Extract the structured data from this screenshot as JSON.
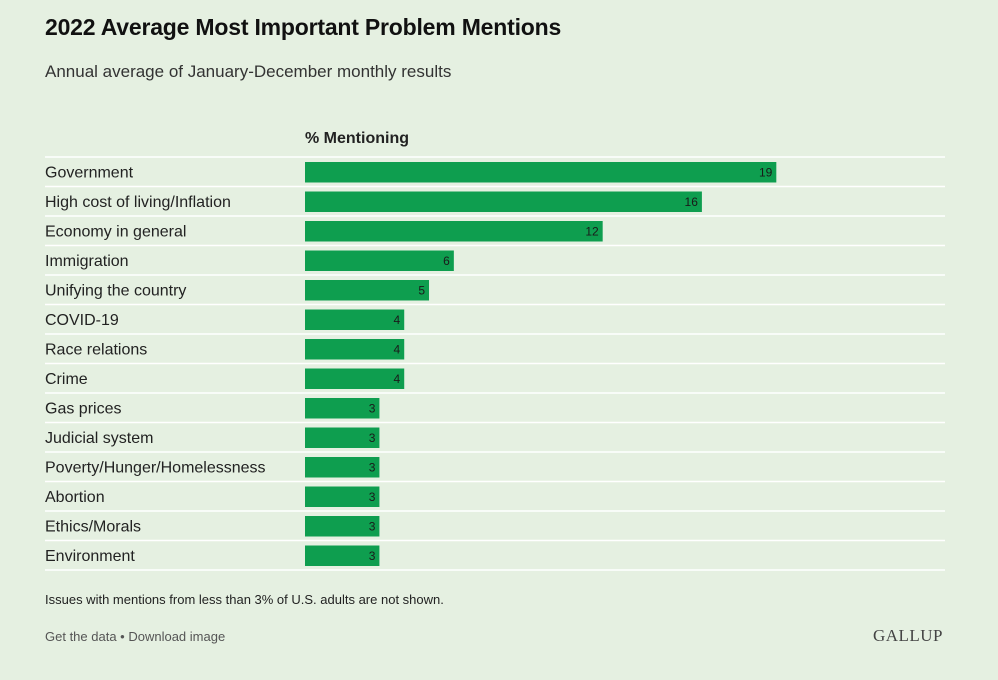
{
  "header": {
    "title": "2022 Average Most Important Problem Mentions",
    "subtitle": "Annual average of January-December monthly results"
  },
  "colors": {
    "bar": "#0e9e4f",
    "background": "#e5f0e1",
    "gridline": "#ffffff"
  },
  "chart_data": {
    "type": "bar",
    "orientation": "horizontal",
    "value_header": "% Mentioning",
    "categories": [
      "Government",
      "High cost of living/Inflation",
      "Economy in general",
      "Immigration",
      "Unifying the country",
      "COVID-19",
      "Race relations",
      "Crime",
      "Gas prices",
      "Judicial system",
      "Poverty/Hunger/Homelessness",
      "Abortion",
      "Ethics/Morals",
      "Environment"
    ],
    "values": [
      19,
      16,
      12,
      6,
      5,
      4,
      4,
      4,
      3,
      3,
      3,
      3,
      3,
      3
    ],
    "xlim": [
      0,
      25.8
    ],
    "grid": true,
    "legend": "none"
  },
  "footer": {
    "note": "Issues with mentions from less than 3% of U.S. adults are not shown.",
    "get_data": "Get the data",
    "separator": " • ",
    "download": "Download image",
    "logo": "GALLUP"
  }
}
